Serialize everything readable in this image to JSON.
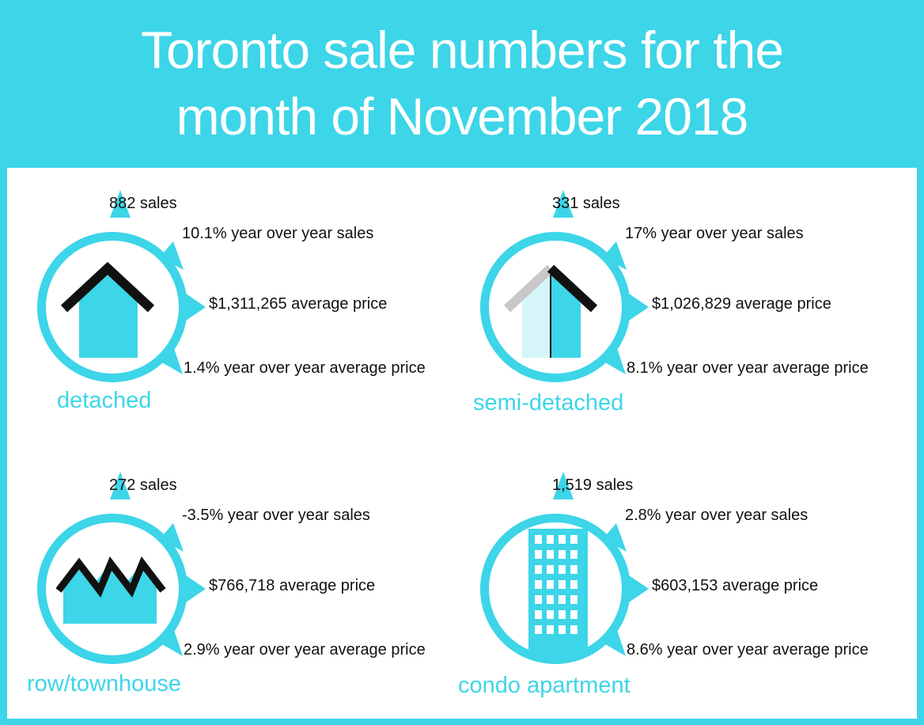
{
  "title_line1": "Toronto sale numbers for the",
  "title_line2": "month of November 2018",
  "colors": {
    "accent": "#3dd5e8",
    "roof": "#111111",
    "roof_light": "#c8c8c8",
    "house_light": "#d6f6fa"
  },
  "types": [
    {
      "icon": "detached-house-icon",
      "label": "detached",
      "sales": "882 sales",
      "yoy_sales": "10.1% year over year sales",
      "avg_price": "$1,311,265 average price",
      "yoy_price": "1.4% year over year average price"
    },
    {
      "icon": "semi-detached-house-icon",
      "label": "semi-detached",
      "sales": "331 sales",
      "yoy_sales": "17% year over year sales",
      "avg_price": "$1,026,829 average price",
      "yoy_price": "8.1% year over year average price"
    },
    {
      "icon": "townhouse-icon",
      "label": "row/townhouse",
      "sales": "272 sales",
      "yoy_sales": "-3.5% year over year sales",
      "avg_price": "$766,718 average price",
      "yoy_price": "2.9% year over year average price"
    },
    {
      "icon": "condo-building-icon",
      "label": "condo apartment",
      "sales": "1,519 sales",
      "yoy_sales": "2.8% year over year sales",
      "avg_price": "$603,153 average price",
      "yoy_price": "8.6% year over year average price"
    }
  ]
}
